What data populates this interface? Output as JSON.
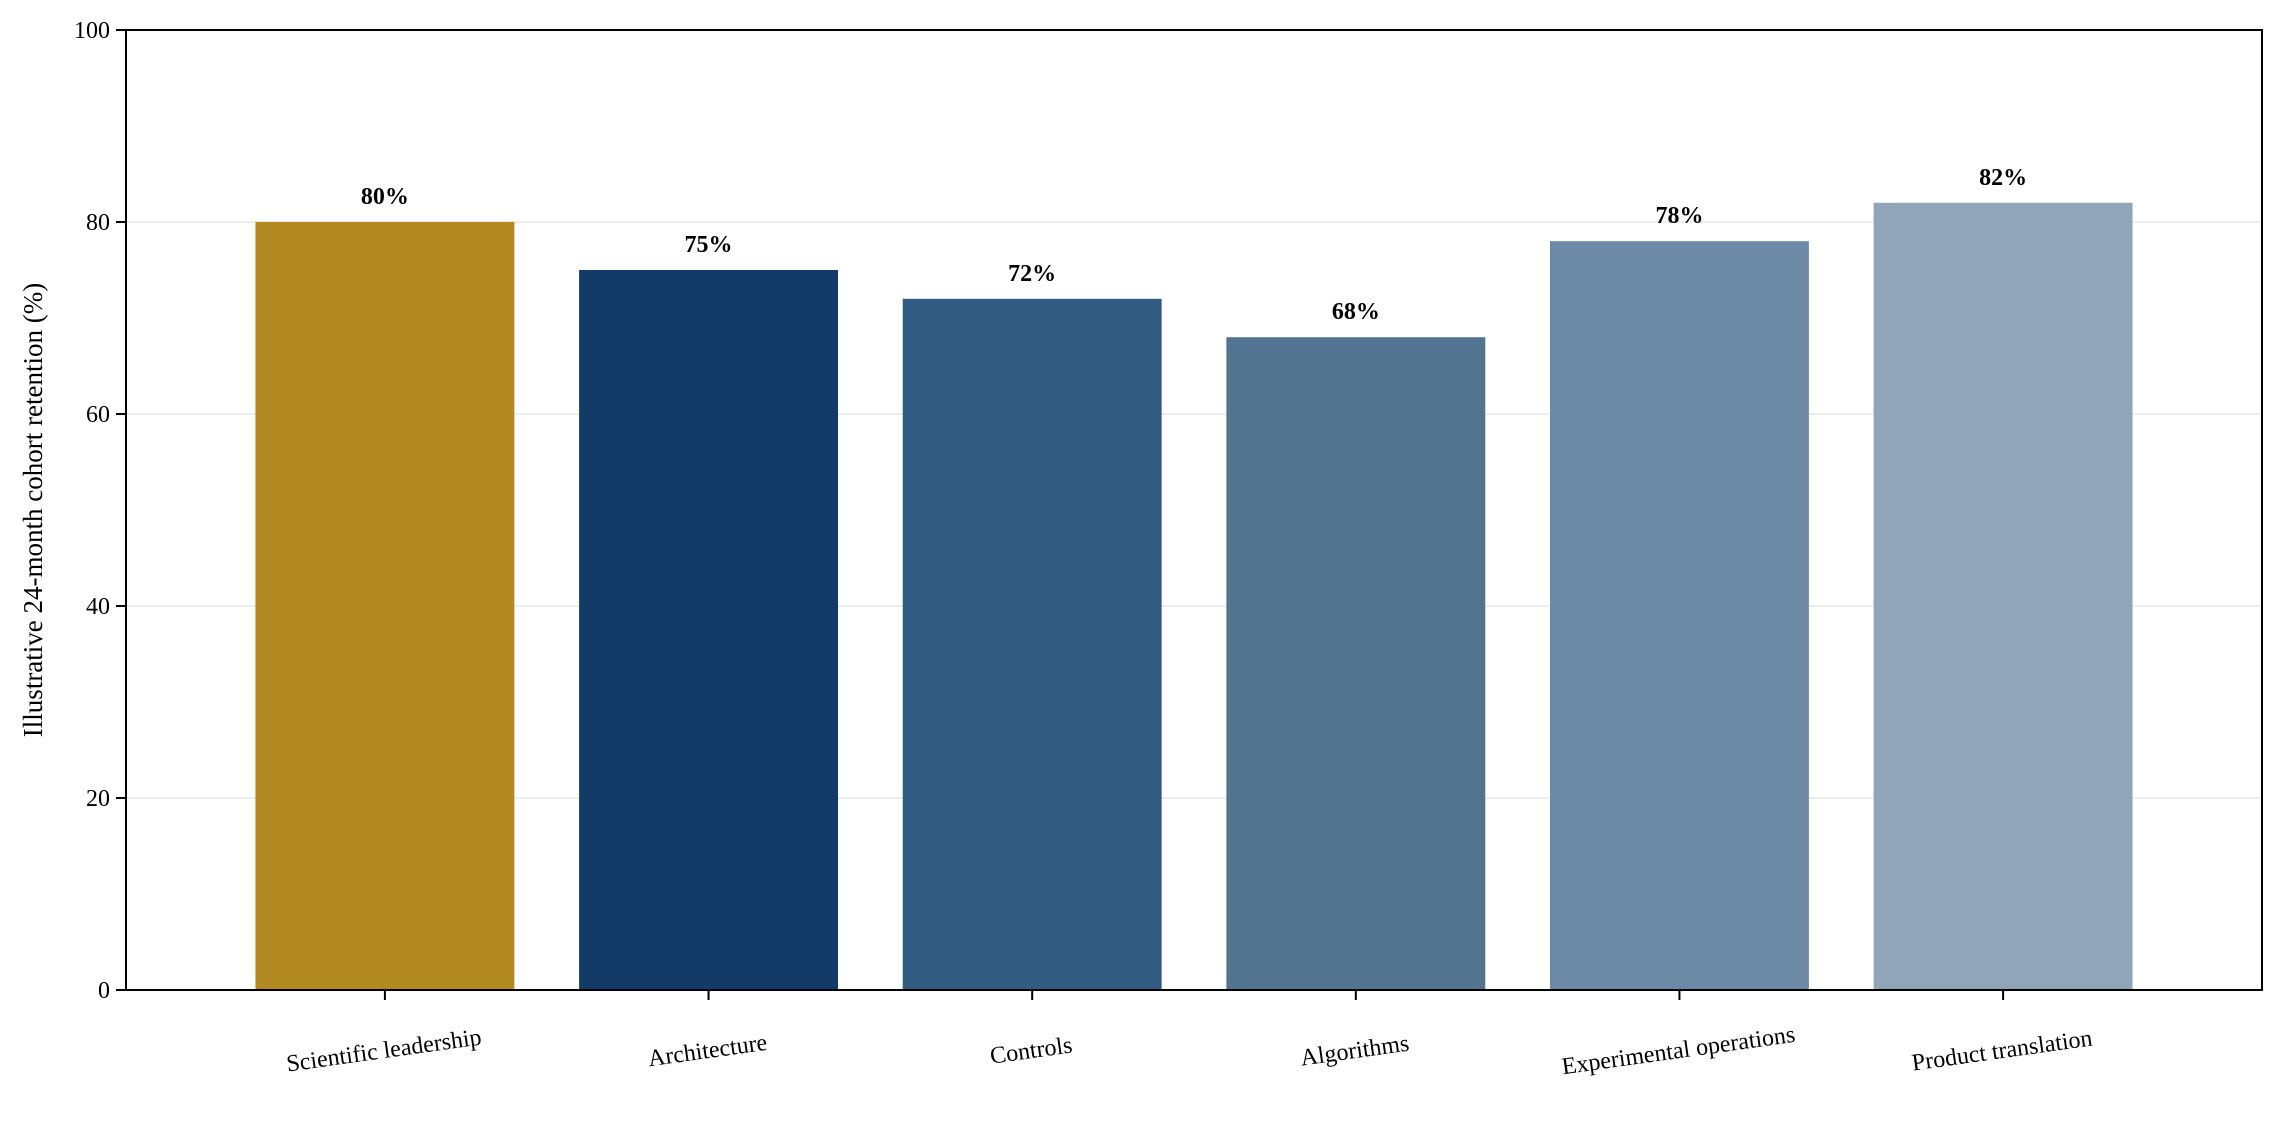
{
  "chart_data": {
    "type": "bar",
    "title": "",
    "xlabel": "",
    "ylabel": "Illustrative 24-month cohort retention (%)",
    "ylim": [
      0,
      100
    ],
    "yticks": [
      0,
      20,
      40,
      60,
      80,
      100
    ],
    "grid": "horizontal",
    "categories": [
      "Scientific leadership",
      "Architecture",
      "Controls",
      "Algorithms",
      "Experimental operations",
      "Product translation"
    ],
    "values": [
      80,
      75,
      72,
      68,
      78,
      82
    ],
    "value_labels": [
      "80%",
      "75%",
      "72%",
      "68%",
      "78%",
      "82%"
    ],
    "colors": [
      "#B38A22",
      "#143A68",
      "#325B82",
      "#527491",
      "#6C89A6",
      "#91A5B8"
    ]
  }
}
